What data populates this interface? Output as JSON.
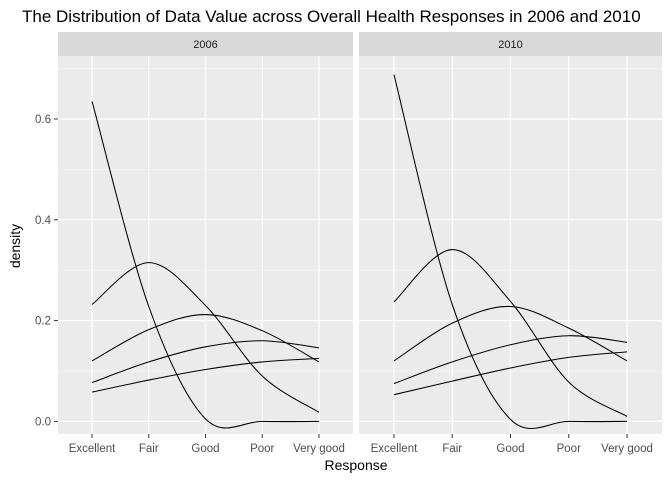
{
  "chart_data": {
    "type": "line",
    "title": "The Distribution of Data Value across Overall Health Responses in 2006 and 2010",
    "xlabel": "Response",
    "ylabel": "density",
    "categories": [
      "Excellent",
      "Fair",
      "Good",
      "Poor",
      "Very good"
    ],
    "ylim": [
      -0.025,
      0.725
    ],
    "yticks": [
      0.0,
      0.2,
      0.4,
      0.6
    ],
    "ytick_labels": [
      "0.0",
      "0.2",
      "0.4",
      "0.6"
    ],
    "grid": true,
    "legend": "none",
    "facets": [
      {
        "label": "2006",
        "series": [
          {
            "values": [
              0.635,
              0.228,
              0.005,
              0.0,
              0.0
            ]
          },
          {
            "values": [
              0.232,
              0.315,
              0.23,
              0.09,
              0.018
            ]
          },
          {
            "values": [
              0.12,
              0.182,
              0.212,
              0.18,
              0.118
            ]
          },
          {
            "values": [
              0.077,
              0.118,
              0.148,
              0.16,
              0.146
            ]
          },
          {
            "values": [
              0.058,
              0.082,
              0.103,
              0.118,
              0.125
            ]
          }
        ]
      },
      {
        "label": "2010",
        "series": [
          {
            "values": [
              0.688,
              0.232,
              0.004,
              0.0,
              0.0
            ]
          },
          {
            "values": [
              0.237,
              0.341,
              0.238,
              0.078,
              0.01
            ]
          },
          {
            "values": [
              0.12,
              0.195,
              0.228,
              0.185,
              0.12
            ]
          },
          {
            "values": [
              0.075,
              0.118,
              0.152,
              0.17,
              0.157
            ]
          },
          {
            "values": [
              0.053,
              0.08,
              0.106,
              0.127,
              0.138
            ]
          }
        ]
      }
    ]
  }
}
